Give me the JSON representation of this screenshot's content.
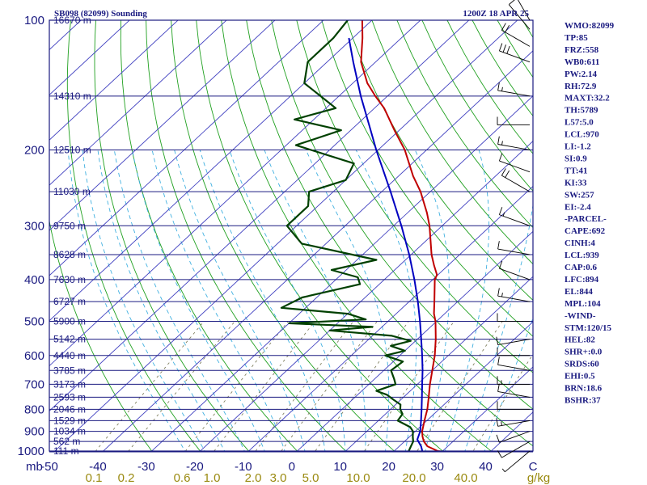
{
  "header": {
    "station": "SB098 (82099) Sounding",
    "time": "1200Z 18 APR 25"
  },
  "indices": [
    "WMO:82099",
    "TP:85",
    "FRZ:558",
    "WB0:611",
    "PW:2.14",
    "RH:72.9",
    "MAXT:32.2",
    "TH:5789",
    "L57:5.0",
    "LCL:970",
    "LI:-1.2",
    "SI:0.9",
    "TT:41",
    "KI:33",
    "SW:257",
    "EI:-2.4",
    "-PARCEL-",
    "CAPE:692",
    "CINH:4",
    "LCL:939",
    "CAP:0.6",
    "LFC:894",
    "EL:844",
    "MPL:104",
    "-WIND-",
    "STM:120/15",
    "HEL:82",
    "SHR+:0.0",
    "SRDS:60",
    "EHI:0.5",
    "BRN:18.6",
    "BSHR:37"
  ],
  "colors": {
    "axis": "#1a1a80",
    "isobar": "#1a1a80",
    "isotherm": "#4040c0",
    "dry_adiabat": "#20a020",
    "moist_adiabat": "#40b0e0",
    "mixing_ratio": "#808060",
    "temperature": "#c00000",
    "dewpoint": "#004000",
    "parcel": "#0000c0",
    "mixing_label": "#9a8a10"
  },
  "chart_data": {
    "type": "line",
    "title": "SB098 (82099) Sounding",
    "subtitle": "1200Z 18 APR 25",
    "xlabel": "C",
    "ylabel": "mb",
    "x_unit": "C",
    "y_unit": "mb",
    "y_scale": "log",
    "xlim": [
      -50,
      50
    ],
    "ylim": [
      1000,
      100
    ],
    "x_ticks": [
      -50,
      -40,
      -30,
      -20,
      -10,
      0,
      10,
      20,
      30,
      40
    ],
    "x_tick_labels": [
      "-50",
      "-40",
      "-30",
      "-20",
      "-10",
      "0",
      "10",
      "20",
      "30",
      "40"
    ],
    "y_ticks": [
      100,
      200,
      300,
      400,
      500,
      600,
      700,
      800,
      900,
      1000
    ],
    "y_tick_labels": [
      "100",
      "200",
      "300",
      "400",
      "500",
      "600",
      "700",
      "800",
      "900",
      "1000"
    ],
    "height_labels": [
      {
        "p": 100,
        "label": "16670 m"
      },
      {
        "p": 150,
        "label": "14310 m"
      },
      {
        "p": 200,
        "label": "12510 m"
      },
      {
        "p": 250,
        "label": "11030 m"
      },
      {
        "p": 300,
        "label": "9750 m"
      },
      {
        "p": 350,
        "label": "8628 m"
      },
      {
        "p": 400,
        "label": "7630 m"
      },
      {
        "p": 450,
        "label": "6727 m"
      },
      {
        "p": 500,
        "label": "5900 m"
      },
      {
        "p": 550,
        "label": "5142 m"
      },
      {
        "p": 600,
        "label": "4440 m"
      },
      {
        "p": 650,
        "label": "3785 m"
      },
      {
        "p": 700,
        "label": "3173 m"
      },
      {
        "p": 750,
        "label": "2593 m"
      },
      {
        "p": 800,
        "label": "2046 m"
      },
      {
        "p": 850,
        "label": "1529 m"
      },
      {
        "p": 900,
        "label": "1034 m"
      },
      {
        "p": 950,
        "label": "562 m"
      },
      {
        "p": 1000,
        "label": "111 m"
      }
    ],
    "mixing_ratio_labels": [
      "0.1",
      "0.2",
      "0.6",
      "1.0",
      "2.0",
      "3.0",
      "5.0",
      "10.0",
      "20.0",
      "40.0",
      "g/kg"
    ],
    "series": [
      {
        "name": "temperature",
        "points": [
          {
            "p": 1008,
            "t": 32.2
          },
          {
            "p": 1000,
            "t": 29.0
          },
          {
            "p": 975,
            "t": 25.8
          },
          {
            "p": 950,
            "t": 24.0
          },
          {
            "p": 925,
            "t": 22.6
          },
          {
            "p": 900,
            "t": 21.4
          },
          {
            "p": 850,
            "t": 19.5
          },
          {
            "p": 800,
            "t": 17.6
          },
          {
            "p": 750,
            "t": 15.2
          },
          {
            "p": 700,
            "t": 12.6
          },
          {
            "p": 650,
            "t": 10.0
          },
          {
            "p": 600,
            "t": 7.2
          },
          {
            "p": 550,
            "t": 3.8
          },
          {
            "p": 500,
            "t": -0.2
          },
          {
            "p": 480,
            "t": -2.2
          },
          {
            "p": 450,
            "t": -4.8
          },
          {
            "p": 400,
            "t": -9.6
          },
          {
            "p": 390,
            "t": -10.2
          },
          {
            "p": 370,
            "t": -13.0
          },
          {
            "p": 350,
            "t": -15.8
          },
          {
            "p": 300,
            "t": -22.6
          },
          {
            "p": 280,
            "t": -26.0
          },
          {
            "p": 250,
            "t": -32.0
          },
          {
            "p": 230,
            "t": -37.0
          },
          {
            "p": 200,
            "t": -44.5
          },
          {
            "p": 180,
            "t": -51.0
          },
          {
            "p": 160,
            "t": -58.0
          },
          {
            "p": 150,
            "t": -62.5
          },
          {
            "p": 140,
            "t": -67.0
          },
          {
            "p": 125,
            "t": -73.0
          },
          {
            "p": 110,
            "t": -78.0
          },
          {
            "p": 100,
            "t": -82.0
          }
        ]
      },
      {
        "name": "dewpoint",
        "points": [
          {
            "p": 1000,
            "t": 23.0
          },
          {
            "p": 975,
            "t": 22.4
          },
          {
            "p": 950,
            "t": 21.8
          },
          {
            "p": 925,
            "t": 20.6
          },
          {
            "p": 900,
            "t": 19.5
          },
          {
            "p": 880,
            "t": 18.0
          },
          {
            "p": 850,
            "t": 14.0
          },
          {
            "p": 820,
            "t": 13.5
          },
          {
            "p": 800,
            "t": 12.0
          },
          {
            "p": 780,
            "t": 11.0
          },
          {
            "p": 760,
            "t": 8.5
          },
          {
            "p": 740,
            "t": 6.0
          },
          {
            "p": 725,
            "t": 3.0
          },
          {
            "p": 700,
            "t": 5.5
          },
          {
            "p": 680,
            "t": 4.0
          },
          {
            "p": 650,
            "t": 1.5
          },
          {
            "p": 620,
            "t": 2.0
          },
          {
            "p": 600,
            "t": -3.0
          },
          {
            "p": 585,
            "t": 0.0
          },
          {
            "p": 570,
            "t": -4.0
          },
          {
            "p": 555,
            "t": -1.0
          },
          {
            "p": 540,
            "t": -6.0
          },
          {
            "p": 525,
            "t": -20.0
          },
          {
            "p": 515,
            "t": -12.0
          },
          {
            "p": 505,
            "t": -30.0
          },
          {
            "p": 495,
            "t": -15.0
          },
          {
            "p": 480,
            "t": -20.0
          },
          {
            "p": 465,
            "t": -35.0
          },
          {
            "p": 440,
            "t": -33.0
          },
          {
            "p": 410,
            "t": -24.0
          },
          {
            "p": 395,
            "t": -26.0
          },
          {
            "p": 380,
            "t": -33.0
          },
          {
            "p": 360,
            "t": -26.0
          },
          {
            "p": 330,
            "t": -45.0
          },
          {
            "p": 300,
            "t": -52.0
          },
          {
            "p": 270,
            "t": -52.0
          },
          {
            "p": 250,
            "t": -55.0
          },
          {
            "p": 235,
            "t": -50.0
          },
          {
            "p": 215,
            "t": -52.0
          },
          {
            "p": 195,
            "t": -68.0
          },
          {
            "p": 180,
            "t": -62.0
          },
          {
            "p": 170,
            "t": -74.0
          },
          {
            "p": 160,
            "t": -68.0
          },
          {
            "p": 140,
            "t": -80.0
          },
          {
            "p": 125,
            "t": -84.0
          },
          {
            "p": 110,
            "t": -84.0
          },
          {
            "p": 100,
            "t": -85.0
          }
        ]
      },
      {
        "name": "parcel",
        "points": [
          {
            "p": 1000,
            "t": 25.8
          },
          {
            "p": 975,
            "t": 24.5
          },
          {
            "p": 940,
            "t": 22.2
          },
          {
            "p": 900,
            "t": 21.0
          },
          {
            "p": 850,
            "t": 18.8
          },
          {
            "p": 800,
            "t": 16.4
          },
          {
            "p": 750,
            "t": 13.8
          },
          {
            "p": 700,
            "t": 11.0
          },
          {
            "p": 650,
            "t": 8.0
          },
          {
            "p": 600,
            "t": 4.6
          },
          {
            "p": 550,
            "t": 0.8
          },
          {
            "p": 500,
            "t": -3.4
          },
          {
            "p": 450,
            "t": -8.2
          },
          {
            "p": 400,
            "t": -13.8
          },
          {
            "p": 350,
            "t": -20.4
          },
          {
            "p": 300,
            "t": -28.4
          },
          {
            "p": 250,
            "t": -38.2
          },
          {
            "p": 200,
            "t": -50.4
          },
          {
            "p": 175,
            "t": -57.4
          },
          {
            "p": 150,
            "t": -65.5
          },
          {
            "p": 125,
            "t": -74.6
          },
          {
            "p": 110,
            "t": -80.8
          }
        ]
      }
    ],
    "wind_barbs": [
      {
        "p": 100,
        "dir": 330,
        "spd": 15
      },
      {
        "p": 105,
        "dir": 320,
        "spd": 10
      },
      {
        "p": 115,
        "dir": 300,
        "spd": 20
      },
      {
        "p": 125,
        "dir": 290,
        "spd": 30
      },
      {
        "p": 150,
        "dir": 280,
        "spd": 15
      },
      {
        "p": 175,
        "dir": 270,
        "spd": 10
      },
      {
        "p": 200,
        "dir": 280,
        "spd": 15
      },
      {
        "p": 225,
        "dir": 290,
        "spd": 10
      },
      {
        "p": 250,
        "dir": 300,
        "spd": 20
      },
      {
        "p": 300,
        "dir": 290,
        "spd": 15
      },
      {
        "p": 350,
        "dir": 280,
        "spd": 10
      },
      {
        "p": 400,
        "dir": 290,
        "spd": 10
      },
      {
        "p": 450,
        "dir": 280,
        "spd": 15
      },
      {
        "p": 500,
        "dir": 270,
        "spd": 10
      },
      {
        "p": 550,
        "dir": 260,
        "spd": 10
      },
      {
        "p": 600,
        "dir": 270,
        "spd": 10
      },
      {
        "p": 650,
        "dir": 280,
        "spd": 10
      },
      {
        "p": 700,
        "dir": 270,
        "spd": 15
      },
      {
        "p": 750,
        "dir": 280,
        "spd": 10
      },
      {
        "p": 800,
        "dir": 270,
        "spd": 10
      },
      {
        "p": 850,
        "dir": 260,
        "spd": 15
      },
      {
        "p": 900,
        "dir": 250,
        "spd": 10
      },
      {
        "p": 950,
        "dir": 240,
        "spd": 10
      },
      {
        "p": 1000,
        "dir": 230,
        "spd": 5
      }
    ]
  }
}
